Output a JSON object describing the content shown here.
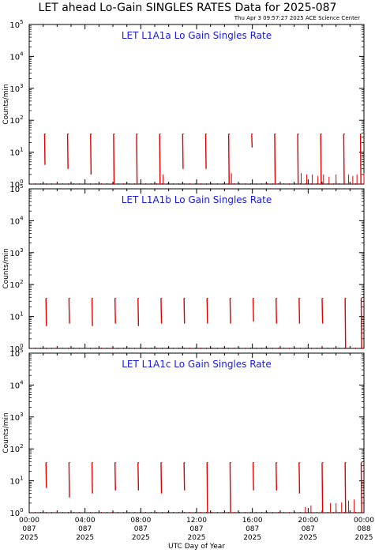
{
  "title": "LET ahead Lo-Gain SINGLES RATES Data for 2025-087",
  "timestamp": "Thu Apr  3 09:57:27 2025 ACE Science Center",
  "xlabel": "UTC Day of Year",
  "ylabel": "Counts/min",
  "colors": {
    "panel_title": "#1a1adc",
    "data": "#e00000",
    "axes": "#000000"
  },
  "x_ticks": [
    {
      "t": 0,
      "time": "00:00",
      "doy": "087",
      "year": "2025"
    },
    {
      "t": 4,
      "time": "04:00",
      "doy": "087",
      "year": "2025"
    },
    {
      "t": 8,
      "time": "08:00",
      "doy": "087",
      "year": "2025"
    },
    {
      "t": 12,
      "time": "12:00",
      "doy": "087",
      "year": "2025"
    },
    {
      "t": 16,
      "time": "16:00",
      "doy": "087",
      "year": "2025"
    },
    {
      "t": 20,
      "time": "20:00",
      "doy": "087",
      "year": "2025"
    },
    {
      "t": 24,
      "time": "00:00",
      "doy": "088",
      "year": "2025"
    }
  ],
  "y_ticks": [
    0,
    1,
    2,
    3,
    4,
    5
  ],
  "chart_data": [
    {
      "type": "line",
      "title": "LET L1A1a Lo Gain Singles Rate",
      "xlim": [
        0,
        24
      ],
      "ylim": [
        1,
        100000
      ],
      "yscale": "log",
      "spikes": [
        {
          "x": 1.1,
          "ymin": 4,
          "ymax": 37
        },
        {
          "x": 2.75,
          "ymin": 3,
          "ymax": 37
        },
        {
          "x": 4.4,
          "ymin": 2,
          "ymax": 37
        },
        {
          "x": 6.05,
          "ymin": 1,
          "ymax": 37
        },
        {
          "x": 7.7,
          "ymin": 1,
          "ymax": 37
        },
        {
          "x": 9.35,
          "ymin": 1,
          "ymax": 37
        },
        {
          "x": 11.0,
          "ymin": 3,
          "ymax": 37
        },
        {
          "x": 12.65,
          "ymin": 3,
          "ymax": 37
        },
        {
          "x": 14.3,
          "ymin": 1,
          "ymax": 37
        },
        {
          "x": 15.95,
          "ymin": 14,
          "ymax": 37
        },
        {
          "x": 17.6,
          "ymin": 1,
          "ymax": 37
        },
        {
          "x": 19.25,
          "ymin": 1,
          "ymax": 37
        },
        {
          "x": 20.9,
          "ymin": 1,
          "ymax": 37
        },
        {
          "x": 22.55,
          "ymin": 1,
          "ymax": 37
        },
        {
          "x": 23.75,
          "ymin": 1,
          "ymax": 37
        }
      ],
      "noise": [
        {
          "x": 9.6,
          "y": 2
        },
        {
          "x": 14.5,
          "y": 2.2
        },
        {
          "x": 19.5,
          "y": 2.2
        },
        {
          "x": 19.9,
          "y": 2
        },
        {
          "x": 20.3,
          "y": 2
        },
        {
          "x": 20.7,
          "y": 1.8
        },
        {
          "x": 21.1,
          "y": 2
        },
        {
          "x": 21.5,
          "y": 1.7
        },
        {
          "x": 22.0,
          "y": 2
        },
        {
          "x": 22.9,
          "y": 2
        },
        {
          "x": 23.2,
          "y": 1.8
        },
        {
          "x": 23.5,
          "y": 2
        },
        {
          "x": 24.0,
          "y": 2.2
        }
      ]
    },
    {
      "type": "line",
      "title": "LET L1A1b Lo Gain Singles Rate",
      "xlim": [
        0,
        24
      ],
      "ylim": [
        1,
        100000
      ],
      "yscale": "log",
      "spikes": [
        {
          "x": 1.2,
          "ymin": 5,
          "ymax": 37
        },
        {
          "x": 2.85,
          "ymin": 6,
          "ymax": 37
        },
        {
          "x": 4.5,
          "ymin": 5,
          "ymax": 37
        },
        {
          "x": 6.15,
          "ymin": 6,
          "ymax": 37
        },
        {
          "x": 7.8,
          "ymin": 5,
          "ymax": 37
        },
        {
          "x": 9.45,
          "ymin": 6,
          "ymax": 37
        },
        {
          "x": 11.1,
          "ymin": 6,
          "ymax": 37
        },
        {
          "x": 12.75,
          "ymin": 6,
          "ymax": 37
        },
        {
          "x": 14.4,
          "ymin": 6,
          "ymax": 37
        },
        {
          "x": 16.05,
          "ymin": 7,
          "ymax": 37
        },
        {
          "x": 17.7,
          "ymin": 6,
          "ymax": 37
        },
        {
          "x": 19.35,
          "ymin": 6,
          "ymax": 37
        },
        {
          "x": 21.0,
          "ymin": 6,
          "ymax": 37
        },
        {
          "x": 22.65,
          "ymin": 1,
          "ymax": 37
        },
        {
          "x": 23.8,
          "ymin": 1,
          "ymax": 37
        }
      ],
      "noise": []
    },
    {
      "type": "line",
      "title": "LET L1A1c Lo Gain Singles Rate",
      "xlim": [
        0,
        24
      ],
      "ylim": [
        1,
        100000
      ],
      "yscale": "log",
      "spikes": [
        {
          "x": 1.2,
          "ymin": 6,
          "ymax": 37
        },
        {
          "x": 2.85,
          "ymin": 3,
          "ymax": 37
        },
        {
          "x": 4.5,
          "ymin": 4,
          "ymax": 37
        },
        {
          "x": 6.15,
          "ymin": 5,
          "ymax": 37
        },
        {
          "x": 7.8,
          "ymin": 5,
          "ymax": 37
        },
        {
          "x": 9.45,
          "ymin": 4,
          "ymax": 37
        },
        {
          "x": 11.1,
          "ymin": 5,
          "ymax": 37
        },
        {
          "x": 12.75,
          "ymin": 1,
          "ymax": 37
        },
        {
          "x": 14.4,
          "ymin": 1,
          "ymax": 37
        },
        {
          "x": 16.05,
          "ymin": 5,
          "ymax": 37
        },
        {
          "x": 17.7,
          "ymin": 5,
          "ymax": 37
        },
        {
          "x": 19.35,
          "ymin": 4,
          "ymax": 37
        },
        {
          "x": 21.0,
          "ymin": 1,
          "ymax": 37
        },
        {
          "x": 22.65,
          "ymin": 1,
          "ymax": 37
        },
        {
          "x": 23.8,
          "ymin": 1,
          "ymax": 37
        }
      ],
      "noise": [
        {
          "x": 19.8,
          "y": 1.5
        },
        {
          "x": 20.2,
          "y": 1.7
        },
        {
          "x": 21.6,
          "y": 2
        },
        {
          "x": 22.0,
          "y": 2
        },
        {
          "x": 22.4,
          "y": 2.1
        },
        {
          "x": 22.9,
          "y": 2.4
        },
        {
          "x": 23.3,
          "y": 2.6
        }
      ]
    }
  ]
}
